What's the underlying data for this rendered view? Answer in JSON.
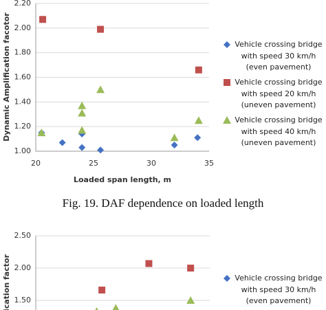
{
  "chart_data": [
    {
      "type": "scatter",
      "y_label": "Dynamic Amplification facotor",
      "x_label": "Loaded span length, m",
      "caption": "Fig. 19. DAF dependence on loaded length",
      "xlim": [
        20,
        35
      ],
      "xticks": [
        20,
        25,
        30,
        35
      ],
      "ylim": [
        1.0,
        2.2
      ],
      "yticks": [
        {
          "value": 1.0,
          "label": "1.00"
        },
        {
          "value": 1.2,
          "label": "1.20"
        },
        {
          "value": 1.4,
          "label": "1.40"
        },
        {
          "value": 1.6,
          "label": "1.60"
        },
        {
          "value": 1.8,
          "label": "1.80"
        },
        {
          "value": 2.0,
          "label": "2.00"
        },
        {
          "value": 2.2,
          "label": "2.20"
        }
      ],
      "grid": true,
      "series": [
        {
          "name": "Vehicle crossing bridge with speed 30 km/h (even pavement)",
          "color": "#4472c4",
          "marker": "diamond",
          "x": [
            20.5,
            22.3,
            24.0,
            24.0,
            25.6,
            32.0,
            34.0
          ],
          "values": [
            1.15,
            1.07,
            1.03,
            1.14,
            1.01,
            1.05,
            1.11
          ]
        },
        {
          "name": "Vehicle crossing bridge with speed 20 km/h (uneven pavement)",
          "color": "#c0504d",
          "marker": "square",
          "x": [
            20.6,
            25.6,
            34.1
          ],
          "values": [
            2.07,
            1.99,
            1.66
          ]
        },
        {
          "name": "Vehicle crossing bridge with speed 40 km/h (uneven pavement)",
          "color": "#9bbb59",
          "marker": "triangle",
          "x": [
            20.5,
            24.0,
            24.0,
            24.0,
            25.6,
            32.0,
            34.1
          ],
          "values": [
            1.15,
            1.37,
            1.31,
            1.17,
            1.5,
            1.11,
            1.25
          ]
        }
      ]
    },
    {
      "type": "scatter",
      "y_label": "ication factor",
      "xlim": [
        0,
        10
      ],
      "ylim": [
        1.0,
        2.5
      ],
      "yticks": [
        {
          "value": 1.5,
          "label": "1.50"
        },
        {
          "value": 2.0,
          "label": "2.00"
        },
        {
          "value": 2.5,
          "label": "2.50"
        }
      ],
      "grid": true,
      "series": [
        {
          "name": "Vehicle crossing bridge with speed 30 km/h (even pavement)",
          "color": "#4472c4",
          "marker": "diamond",
          "x": [],
          "values": []
        },
        {
          "color": "#c0504d",
          "marker": "square",
          "x": [
            3.8,
            6.5,
            8.9
          ],
          "values": [
            1.66,
            2.07,
            2.0
          ]
        },
        {
          "color": "#9bbb59",
          "marker": "triangle",
          "x": [
            3.5,
            4.6,
            8.9
          ],
          "values": [
            1.33,
            1.38,
            1.5
          ]
        }
      ]
    }
  ]
}
